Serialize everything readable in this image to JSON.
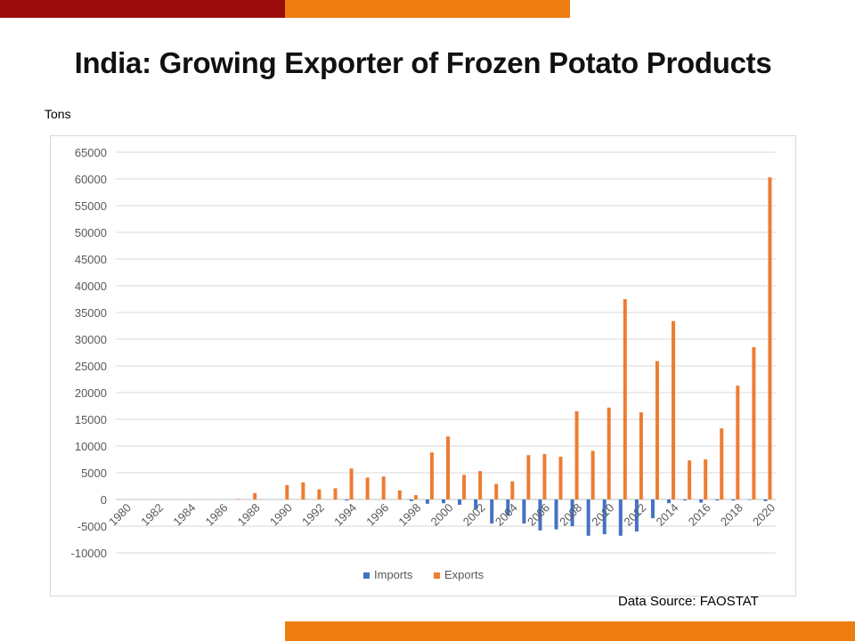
{
  "slide": {
    "title": "India: Growing Exporter of Frozen Potato Products",
    "units": "Tons",
    "source": "Data Source: FAOSTAT"
  },
  "colors": {
    "imports": "#4472c4",
    "exports": "#ed7d31",
    "gridline": "#d9d9d9",
    "banner_red": "#9b0d0d",
    "banner_orange": "#ee7d11"
  },
  "chart_data": {
    "type": "bar",
    "title": "",
    "xlabel": "",
    "ylabel": "Tons",
    "ylim": [
      -10000,
      65000
    ],
    "yticks": [
      -10000,
      -5000,
      0,
      5000,
      10000,
      15000,
      20000,
      25000,
      30000,
      35000,
      40000,
      45000,
      50000,
      55000,
      60000,
      65000
    ],
    "xtick_labels": [
      "1980",
      "1982",
      "1984",
      "1986",
      "1988",
      "1990",
      "1992",
      "1994",
      "1996",
      "1998",
      "2000",
      "2002",
      "2004",
      "2006",
      "2008",
      "2010",
      "2012",
      "2014",
      "2016",
      "2018",
      "2020"
    ],
    "legend_position": "bottom",
    "grid": true,
    "categories": [
      "1980",
      "1981",
      "1982",
      "1983",
      "1984",
      "1985",
      "1986",
      "1987",
      "1988",
      "1989",
      "1990",
      "1991",
      "1992",
      "1993",
      "1994",
      "1995",
      "1996",
      "1997",
      "1998",
      "1999",
      "2000",
      "2001",
      "2002",
      "2003",
      "2004",
      "2005",
      "2006",
      "2007",
      "2008",
      "2009",
      "2010",
      "2011",
      "2012",
      "2013",
      "2014",
      "2015",
      "2016",
      "2017",
      "2018",
      "2019",
      "2020"
    ],
    "series": [
      {
        "name": "Imports",
        "values": [
          0,
          0,
          0,
          0,
          0,
          0,
          0,
          0,
          0,
          0,
          0,
          0,
          0,
          0,
          -200,
          0,
          0,
          0,
          -300,
          -800,
          -700,
          -1000,
          -1800,
          -4500,
          -3000,
          -4500,
          -5800,
          -5600,
          -5000,
          -6800,
          -6500,
          -6800,
          -6000,
          -3500,
          -700,
          -200,
          -600,
          -200,
          -200,
          -100,
          -300
        ]
      },
      {
        "name": "Exports",
        "values": [
          0,
          0,
          0,
          0,
          0,
          0,
          0,
          100,
          1200,
          0,
          2700,
          3200,
          1900,
          2100,
          5800,
          4100,
          4300,
          1700,
          800,
          8800,
          11800,
          4600,
          5300,
          2900,
          3400,
          8300,
          8500,
          8000,
          16500,
          9100,
          17200,
          37500,
          16300,
          25900,
          33400,
          7300,
          7500,
          13300,
          21300,
          28500,
          60300
        ]
      }
    ]
  }
}
